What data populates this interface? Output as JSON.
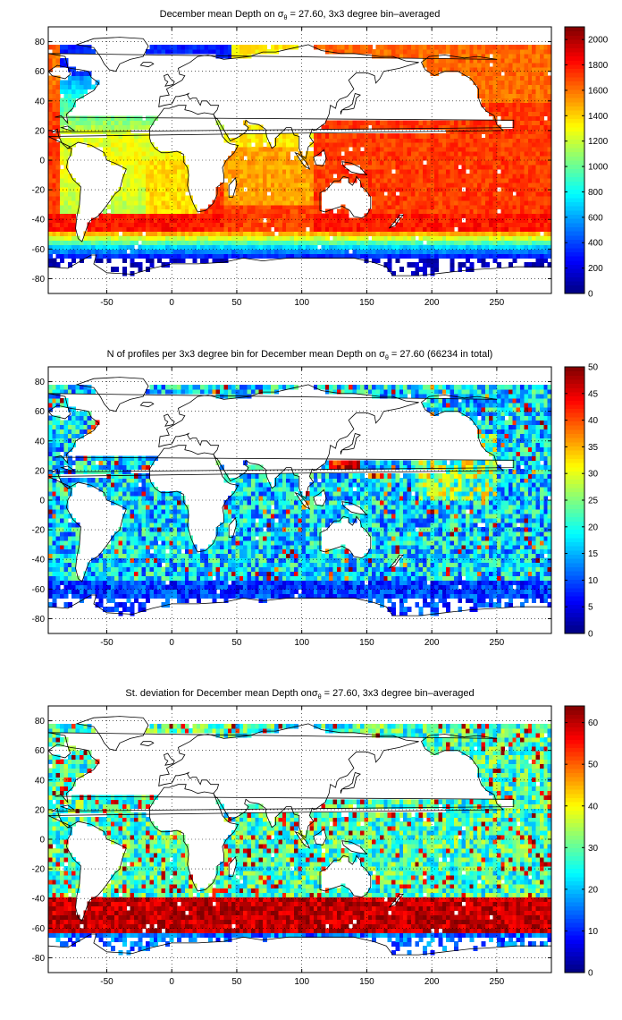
{
  "figure": {
    "colormap": "jet"
  },
  "chart_data": [
    {
      "type": "heatmap",
      "title": {
        "pre": "December mean Depth on ",
        "sym": "σ",
        "sub": "θ",
        "post": " = 27.60, 3x3 degree bin–averaged"
      },
      "field": "depth",
      "xlim": [
        -95,
        292
      ],
      "ylim": [
        -90,
        90
      ],
      "xticks": [
        -50,
        0,
        50,
        100,
        150,
        200,
        250
      ],
      "yticks": [
        80,
        60,
        40,
        20,
        0,
        -20,
        -40,
        -60,
        -80
      ],
      "grid": true,
      "colorbar": {
        "min": 0,
        "max": 2100,
        "ticks": [
          0,
          200,
          400,
          600,
          800,
          1000,
          1200,
          1400,
          1600,
          1800,
          2000
        ]
      }
    },
    {
      "type": "heatmap",
      "title": {
        "pre": "N of profiles per 3x3 degree bin for December mean Depth on ",
        "sym": "σ",
        "sub": "θ",
        "post": " = 27.60 (66234 in total)"
      },
      "field": "count",
      "xlim": [
        -95,
        292
      ],
      "ylim": [
        -90,
        90
      ],
      "xticks": [
        -50,
        0,
        50,
        100,
        150,
        200,
        250
      ],
      "yticks": [
        80,
        60,
        40,
        20,
        0,
        -20,
        -40,
        -60,
        -80
      ],
      "grid": true,
      "colorbar": {
        "min": 0,
        "max": 50,
        "ticks": [
          0,
          5,
          10,
          15,
          20,
          25,
          30,
          35,
          40,
          45,
          50
        ]
      }
    },
    {
      "type": "heatmap",
      "title": {
        "pre": "St. deviation for December mean Depth on",
        "sym": "σ",
        "sub": "θ",
        "post": " = 27.60, 3x3 degree bin–averaged"
      },
      "field": "std",
      "xlim": [
        -95,
        292
      ],
      "ylim": [
        -90,
        90
      ],
      "xticks": [
        -50,
        0,
        50,
        100,
        150,
        200,
        250
      ],
      "yticks": [
        80,
        60,
        40,
        20,
        0,
        -20,
        -40,
        -60,
        -80
      ],
      "grid": true,
      "colorbar": {
        "min": 0,
        "max": 64,
        "ticks": [
          0,
          10,
          20,
          30,
          40,
          50,
          60
        ]
      }
    }
  ]
}
